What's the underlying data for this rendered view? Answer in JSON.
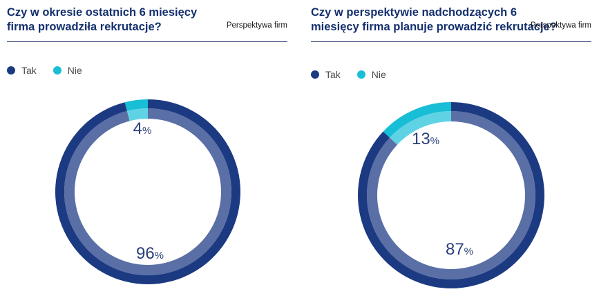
{
  "colors": {
    "tak_outer": "#1c3a82",
    "tak_inner": "#5a6fa5",
    "nie_outer": "#18bdd6",
    "nie_inner": "#5fd3e4"
  },
  "chart_data": [
    {
      "type": "pie",
      "title": "Czy w okresie ostatnich 6 miesięcy firma prowadziła rekrutacje?",
      "subtitle": "Perspektywa firm",
      "legend": [
        "Tak",
        "Nie"
      ],
      "slices": [
        {
          "label": "Tak",
          "value": 96,
          "display": "96"
        },
        {
          "label": "Nie",
          "value": 4,
          "display": "4"
        }
      ],
      "unit": "%"
    },
    {
      "type": "pie",
      "title": "Czy w perspektywie nadchodzących 6 miesięcy firma planuje prowadzić rekrutacje?",
      "subtitle": "Perspektywa firm",
      "legend": [
        "Tak",
        "Nie"
      ],
      "slices": [
        {
          "label": "Tak",
          "value": 87,
          "display": "87"
        },
        {
          "label": "Nie",
          "value": 13,
          "display": "13"
        }
      ],
      "unit": "%"
    }
  ]
}
